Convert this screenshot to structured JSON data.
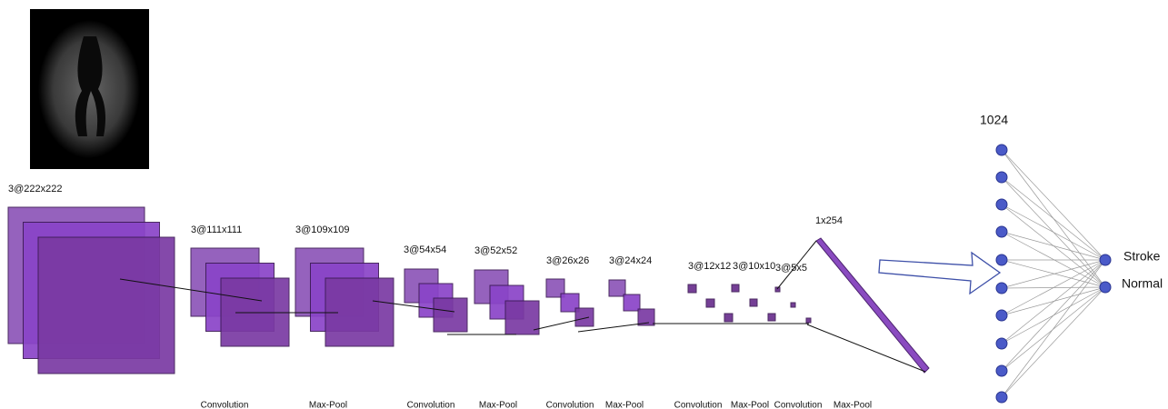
{
  "layers": [
    {
      "label": "3@222x222"
    },
    {
      "label": "3@111x111"
    },
    {
      "label": "3@109x109"
    },
    {
      "label": "3@54x54"
    },
    {
      "label": "3@52x52"
    },
    {
      "label": "3@26x26"
    },
    {
      "label": "3@24x24"
    },
    {
      "label": "3@12x12"
    },
    {
      "label": "3@10x10"
    },
    {
      "label": "3@5x5"
    }
  ],
  "flatten": {
    "label": "1x254"
  },
  "operations": [
    "Convolution",
    "Max-Pool",
    "Convolution",
    "Max-Pool",
    "Convolution",
    "Max-Pool",
    "Convolution",
    "Max-Pool",
    "Convolution",
    "Max-Pool"
  ],
  "dense": {
    "label": "1024"
  },
  "outputs": [
    "Stroke",
    "Normal"
  ]
}
